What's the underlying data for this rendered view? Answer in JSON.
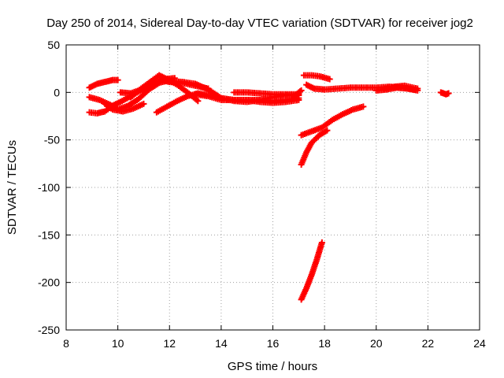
{
  "chart_data": {
    "type": "scatter",
    "title": "Day 250 of 2014, Sidereal Day-to-day VTEC variation (SDTVAR) for receiver jog2",
    "xlabel": "GPS time / hours",
    "ylabel": "SDTVAR / TECUs",
    "xlim": [
      8,
      24
    ],
    "ylim": [
      -250,
      50
    ],
    "x_ticks": [
      8,
      10,
      12,
      14,
      16,
      18,
      20,
      22,
      24
    ],
    "y_ticks": [
      -250,
      -200,
      -150,
      -100,
      -50,
      0,
      50
    ],
    "x_tick_labels": [
      "8",
      "10",
      "12",
      "14",
      "16",
      "18",
      "20",
      "22",
      "24"
    ],
    "y_tick_labels": [
      "-250",
      "-200",
      "-150",
      "-100",
      "-50",
      "0",
      "50"
    ],
    "grid": true,
    "marker": "+",
    "color": "#ff0000",
    "tracks": [
      {
        "x": [
          8.9,
          9.2,
          9.5,
          9.8,
          10.0
        ],
        "y": [
          5,
          9,
          11,
          13,
          13
        ]
      },
      {
        "x": [
          8.9,
          9.2,
          9.5,
          9.8,
          10.1,
          10.5,
          11.0,
          11.5,
          11.8,
          12.2
        ],
        "y": [
          -21,
          -22,
          -20,
          -14,
          -10,
          -4,
          4,
          10,
          14,
          15
        ]
      },
      {
        "x": [
          8.9,
          9.3,
          9.7,
          10.0,
          10.4,
          10.8,
          11.2,
          11.6,
          12.0
        ],
        "y": [
          -5,
          -8,
          -13,
          -18,
          -14,
          -7,
          3,
          10,
          13
        ]
      },
      {
        "x": [
          9.5,
          9.8,
          10.2,
          10.6,
          11.0
        ],
        "y": [
          -12,
          -18,
          -20,
          -17,
          -12
        ]
      },
      {
        "x": [
          10.1,
          10.5,
          10.9,
          11.3,
          11.7,
          12.0,
          12.5,
          13.0,
          13.5
        ],
        "y": [
          0,
          -1,
          3,
          8,
          13,
          11,
          10,
          7,
          4
        ]
      },
      {
        "x": [
          10.5,
          10.9,
          11.3,
          11.6,
          11.9,
          12.3,
          12.7,
          13.1
        ],
        "y": [
          -5,
          4,
          12,
          18,
          14,
          8,
          0,
          -9
        ]
      },
      {
        "x": [
          11.5,
          11.9,
          12.3,
          12.7,
          13.1,
          13.5,
          14.0,
          14.5,
          15.0,
          15.5,
          16.0,
          16.5,
          17.0
        ],
        "y": [
          -21,
          -15,
          -9,
          -4,
          -1,
          -3,
          -6,
          -8,
          -8,
          -10,
          -11,
          -10,
          -8
        ]
      },
      {
        "x": [
          12.0,
          12.5,
          13.0,
          13.5,
          14.0,
          14.5,
          15.0,
          15.5,
          16.0,
          16.5,
          17.0
        ],
        "y": [
          12,
          11,
          9,
          3,
          -6,
          -9,
          -10,
          -8,
          -5,
          -3,
          -3
        ]
      },
      {
        "x": [
          13.0,
          13.5,
          14.0,
          14.5,
          15.0,
          15.5,
          16.0,
          16.5,
          17.0
        ],
        "y": [
          -2,
          -4,
          -8,
          -8,
          -8,
          -8,
          -9,
          -8,
          -6
        ]
      },
      {
        "x": [
          14.5,
          15.0,
          15.5,
          16.0,
          16.5,
          17.0
        ],
        "y": [
          0,
          0,
          -1,
          -2,
          -2,
          -2
        ]
      },
      {
        "x": [
          16.8,
          17.0,
          17.1
        ],
        "y": [
          -5,
          0,
          2
        ]
      },
      {
        "x": [
          17.2,
          17.5,
          17.8,
          18.2
        ],
        "y": [
          18,
          18,
          17,
          14
        ]
      },
      {
        "x": [
          17.3,
          17.6,
          18.0,
          18.5,
          19.0,
          19.5,
          20.0,
          20.5,
          21.0,
          21.5
        ],
        "y": [
          8,
          4,
          3,
          4,
          5,
          5,
          5,
          6,
          5,
          3
        ]
      },
      {
        "x": [
          20.0,
          20.4,
          20.8,
          21.2,
          21.6
        ],
        "y": [
          2,
          3,
          5,
          4,
          2
        ]
      },
      {
        "x": [
          20.3,
          20.7,
          21.1,
          21.6
        ],
        "y": [
          4,
          6,
          7,
          4
        ]
      },
      {
        "x": [
          22.5,
          22.6,
          22.7,
          22.8
        ],
        "y": [
          0,
          -1,
          -2,
          -1
        ]
      },
      {
        "x": [
          17.1,
          17.5,
          17.9,
          18.3,
          18.7,
          19.1,
          19.5
        ],
        "y": [
          -45,
          -41,
          -37,
          -29,
          -23,
          -18,
          -15
        ]
      },
      {
        "x": [
          17.1,
          17.3,
          17.5,
          17.8,
          18.1
        ],
        "y": [
          -76,
          -63,
          -53,
          -45,
          -40
        ]
      },
      {
        "x": [
          17.1,
          17.3,
          17.5,
          17.7,
          17.9
        ],
        "y": [
          -218,
          -206,
          -192,
          -176,
          -158
        ]
      }
    ]
  }
}
